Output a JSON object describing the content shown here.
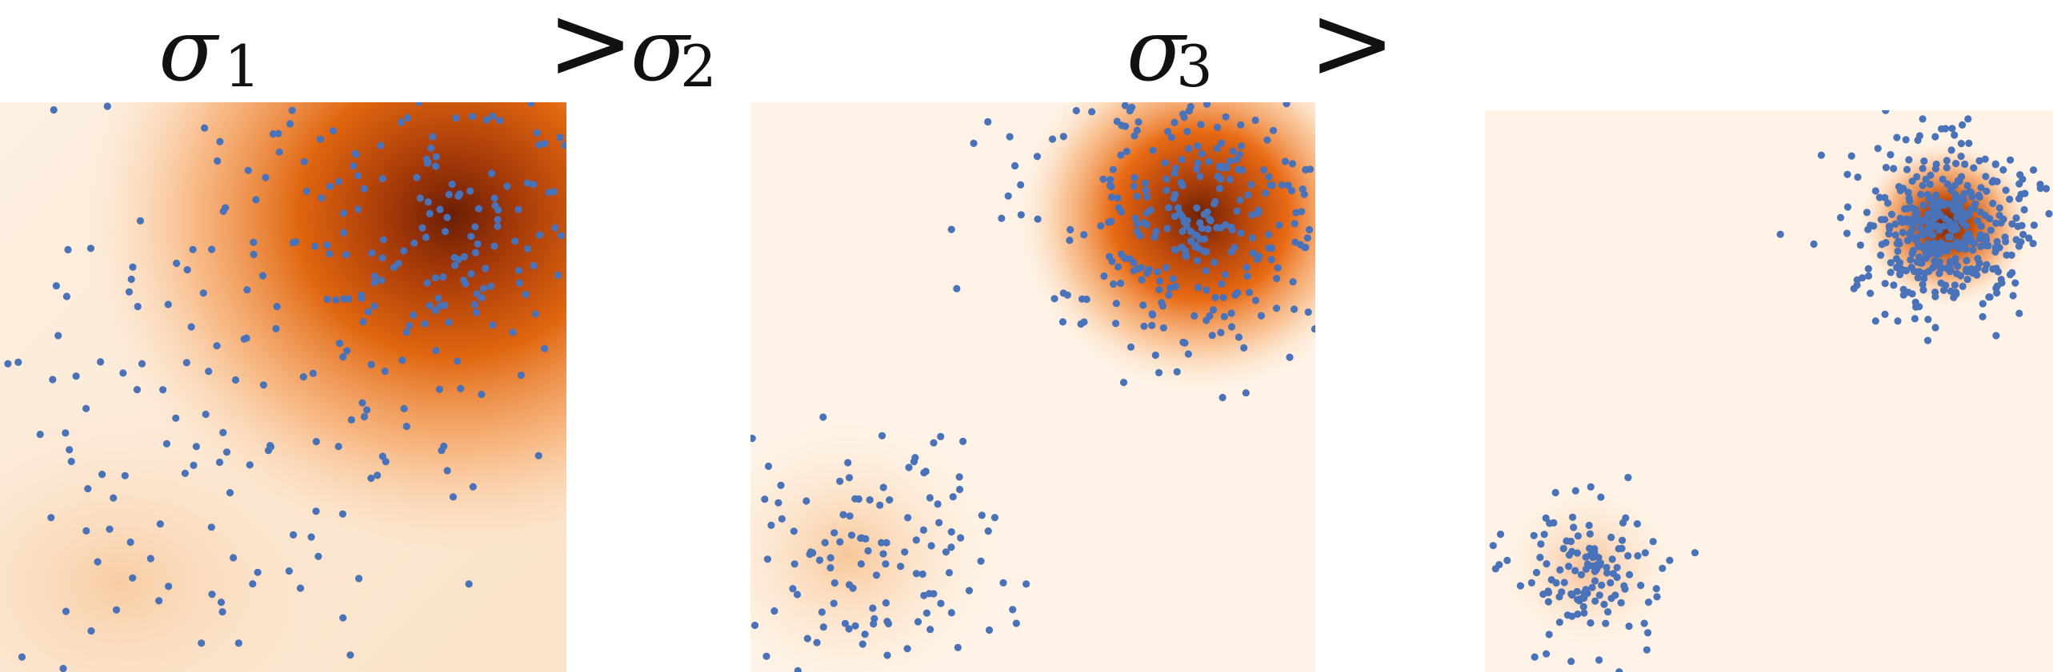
{
  "panels": [
    {
      "symbol": "σ",
      "index": "1",
      "spread": "large"
    },
    {
      "symbol": "σ",
      "index": "2",
      "spread": "medium"
    },
    {
      "symbol": "σ",
      "index": "3",
      "spread": "small"
    }
  ],
  "separators": [
    ">",
    ">"
  ],
  "colors": {
    "background_density": "#fef3e6",
    "density_mid": "#f08a3c",
    "density_high": "#d14f0c",
    "density_peak": "#7c2306",
    "points": "#4a72b8"
  },
  "icons": [
    "point-marker"
  ]
}
